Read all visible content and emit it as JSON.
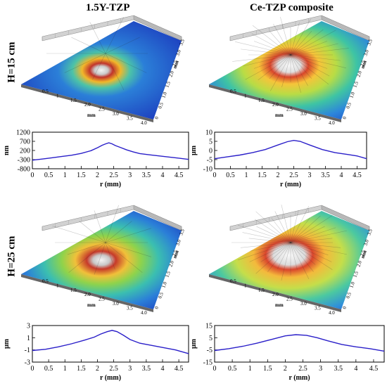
{
  "column_titles": [
    "1.5Y-TZP",
    "Ce-TZP composite"
  ],
  "row_labels": [
    "H=15 cm",
    "H=25 cm"
  ],
  "surface_axis_label": "mm",
  "surface_x_ticks": [
    "0.5",
    "1",
    "1.5",
    "2.0",
    "2.5",
    "3.0",
    "3.5",
    "4.0"
  ],
  "surface_y_ticks": [
    "0",
    "0.5",
    "1.0",
    "1.5",
    "2.0",
    "2.5",
    "3.0",
    "3.5"
  ],
  "colors": {
    "line": "#2a1fc9",
    "surface_low": "#1d3fbf",
    "surface_high": "#f0f0f0"
  },
  "chart_data": [
    {
      "type": "line",
      "panel": "1.5Y-TZP, H=15 cm",
      "xlabel": "r (mm)",
      "ylabel": "nm",
      "xlim": [
        0,
        4.8
      ],
      "ylim": [
        -800,
        1200
      ],
      "xticks": [
        0,
        0.5,
        1,
        1.5,
        2,
        2.5,
        3,
        3.5,
        4,
        4.5
      ],
      "yticks": [
        -800,
        -300,
        200,
        700,
        1200
      ],
      "x": [
        0,
        0.3,
        0.6,
        0.9,
        1.2,
        1.5,
        1.8,
        2.0,
        2.15,
        2.25,
        2.35,
        2.45,
        2.55,
        2.7,
        2.9,
        3.1,
        3.3,
        3.6,
        4.0,
        4.4,
        4.8
      ],
      "y": [
        -330,
        -270,
        -200,
        -130,
        -60,
        40,
        190,
        350,
        490,
        560,
        620,
        560,
        470,
        370,
        230,
        120,
        30,
        -40,
        -120,
        -200,
        -290
      ]
    },
    {
      "type": "line",
      "panel": "Ce-TZP composite, H=15 cm",
      "xlabel": "r (mm)",
      "ylabel": "μm",
      "xlim": [
        0,
        4.8
      ],
      "ylim": [
        -10,
        10
      ],
      "xticks": [
        0,
        0.5,
        1,
        1.5,
        2,
        2.5,
        3,
        3.5,
        4,
        4.5
      ],
      "yticks": [
        -10,
        -5,
        0,
        5,
        10
      ],
      "x": [
        0,
        0.4,
        0.8,
        1.2,
        1.6,
        2.0,
        2.3,
        2.5,
        2.7,
        3.0,
        3.4,
        3.8,
        4.2,
        4.5,
        4.8
      ],
      "y": [
        -4.5,
        -3.5,
        -2.5,
        -1.2,
        0.5,
        3.0,
        4.8,
        5.5,
        5.0,
        3.0,
        0.5,
        -1.2,
        -2.2,
        -3.0,
        -4.5
      ]
    },
    {
      "type": "line",
      "panel": "1.5Y-TZP, H=25 cm",
      "xlabel": "r (mm)",
      "ylabel": "μm",
      "xlim": [
        0,
        4.8
      ],
      "ylim": [
        -3,
        3
      ],
      "xticks": [
        0,
        0.5,
        1,
        1.5,
        2,
        2.5,
        3,
        3.5,
        4,
        4.5
      ],
      "yticks": [
        -3,
        -1,
        1,
        3
      ],
      "x": [
        0,
        0.4,
        0.8,
        1.2,
        1.6,
        1.9,
        2.1,
        2.3,
        2.45,
        2.6,
        2.8,
        3.0,
        3.3,
        3.6,
        4.0,
        4.4,
        4.8
      ],
      "y": [
        -1.1,
        -0.9,
        -0.5,
        0,
        0.6,
        1.1,
        1.6,
        2.0,
        2.2,
        2.0,
        1.4,
        0.7,
        0.1,
        -0.2,
        -0.6,
        -1.0,
        -1.6
      ]
    },
    {
      "type": "line",
      "panel": "Ce-TZP composite, H=25 cm",
      "xlabel": "r (mm)",
      "ylabel": "μm",
      "xlim": [
        0,
        4.8
      ],
      "ylim": [
        -15,
        15
      ],
      "xticks": [
        0,
        0.5,
        1,
        1.5,
        2,
        2.5,
        3,
        3.5,
        4,
        4.5
      ],
      "yticks": [
        -15,
        -5,
        5,
        15
      ],
      "x": [
        0,
        0.4,
        0.8,
        1.2,
        1.6,
        2.0,
        2.3,
        2.6,
        2.9,
        3.2,
        3.6,
        4.0,
        4.4,
        4.8
      ],
      "y": [
        -5.5,
        -4,
        -2,
        0.5,
        3.5,
        6.5,
        7.5,
        7,
        5,
        2.5,
        -0.5,
        -2.5,
        -4,
        -6
      ]
    }
  ]
}
